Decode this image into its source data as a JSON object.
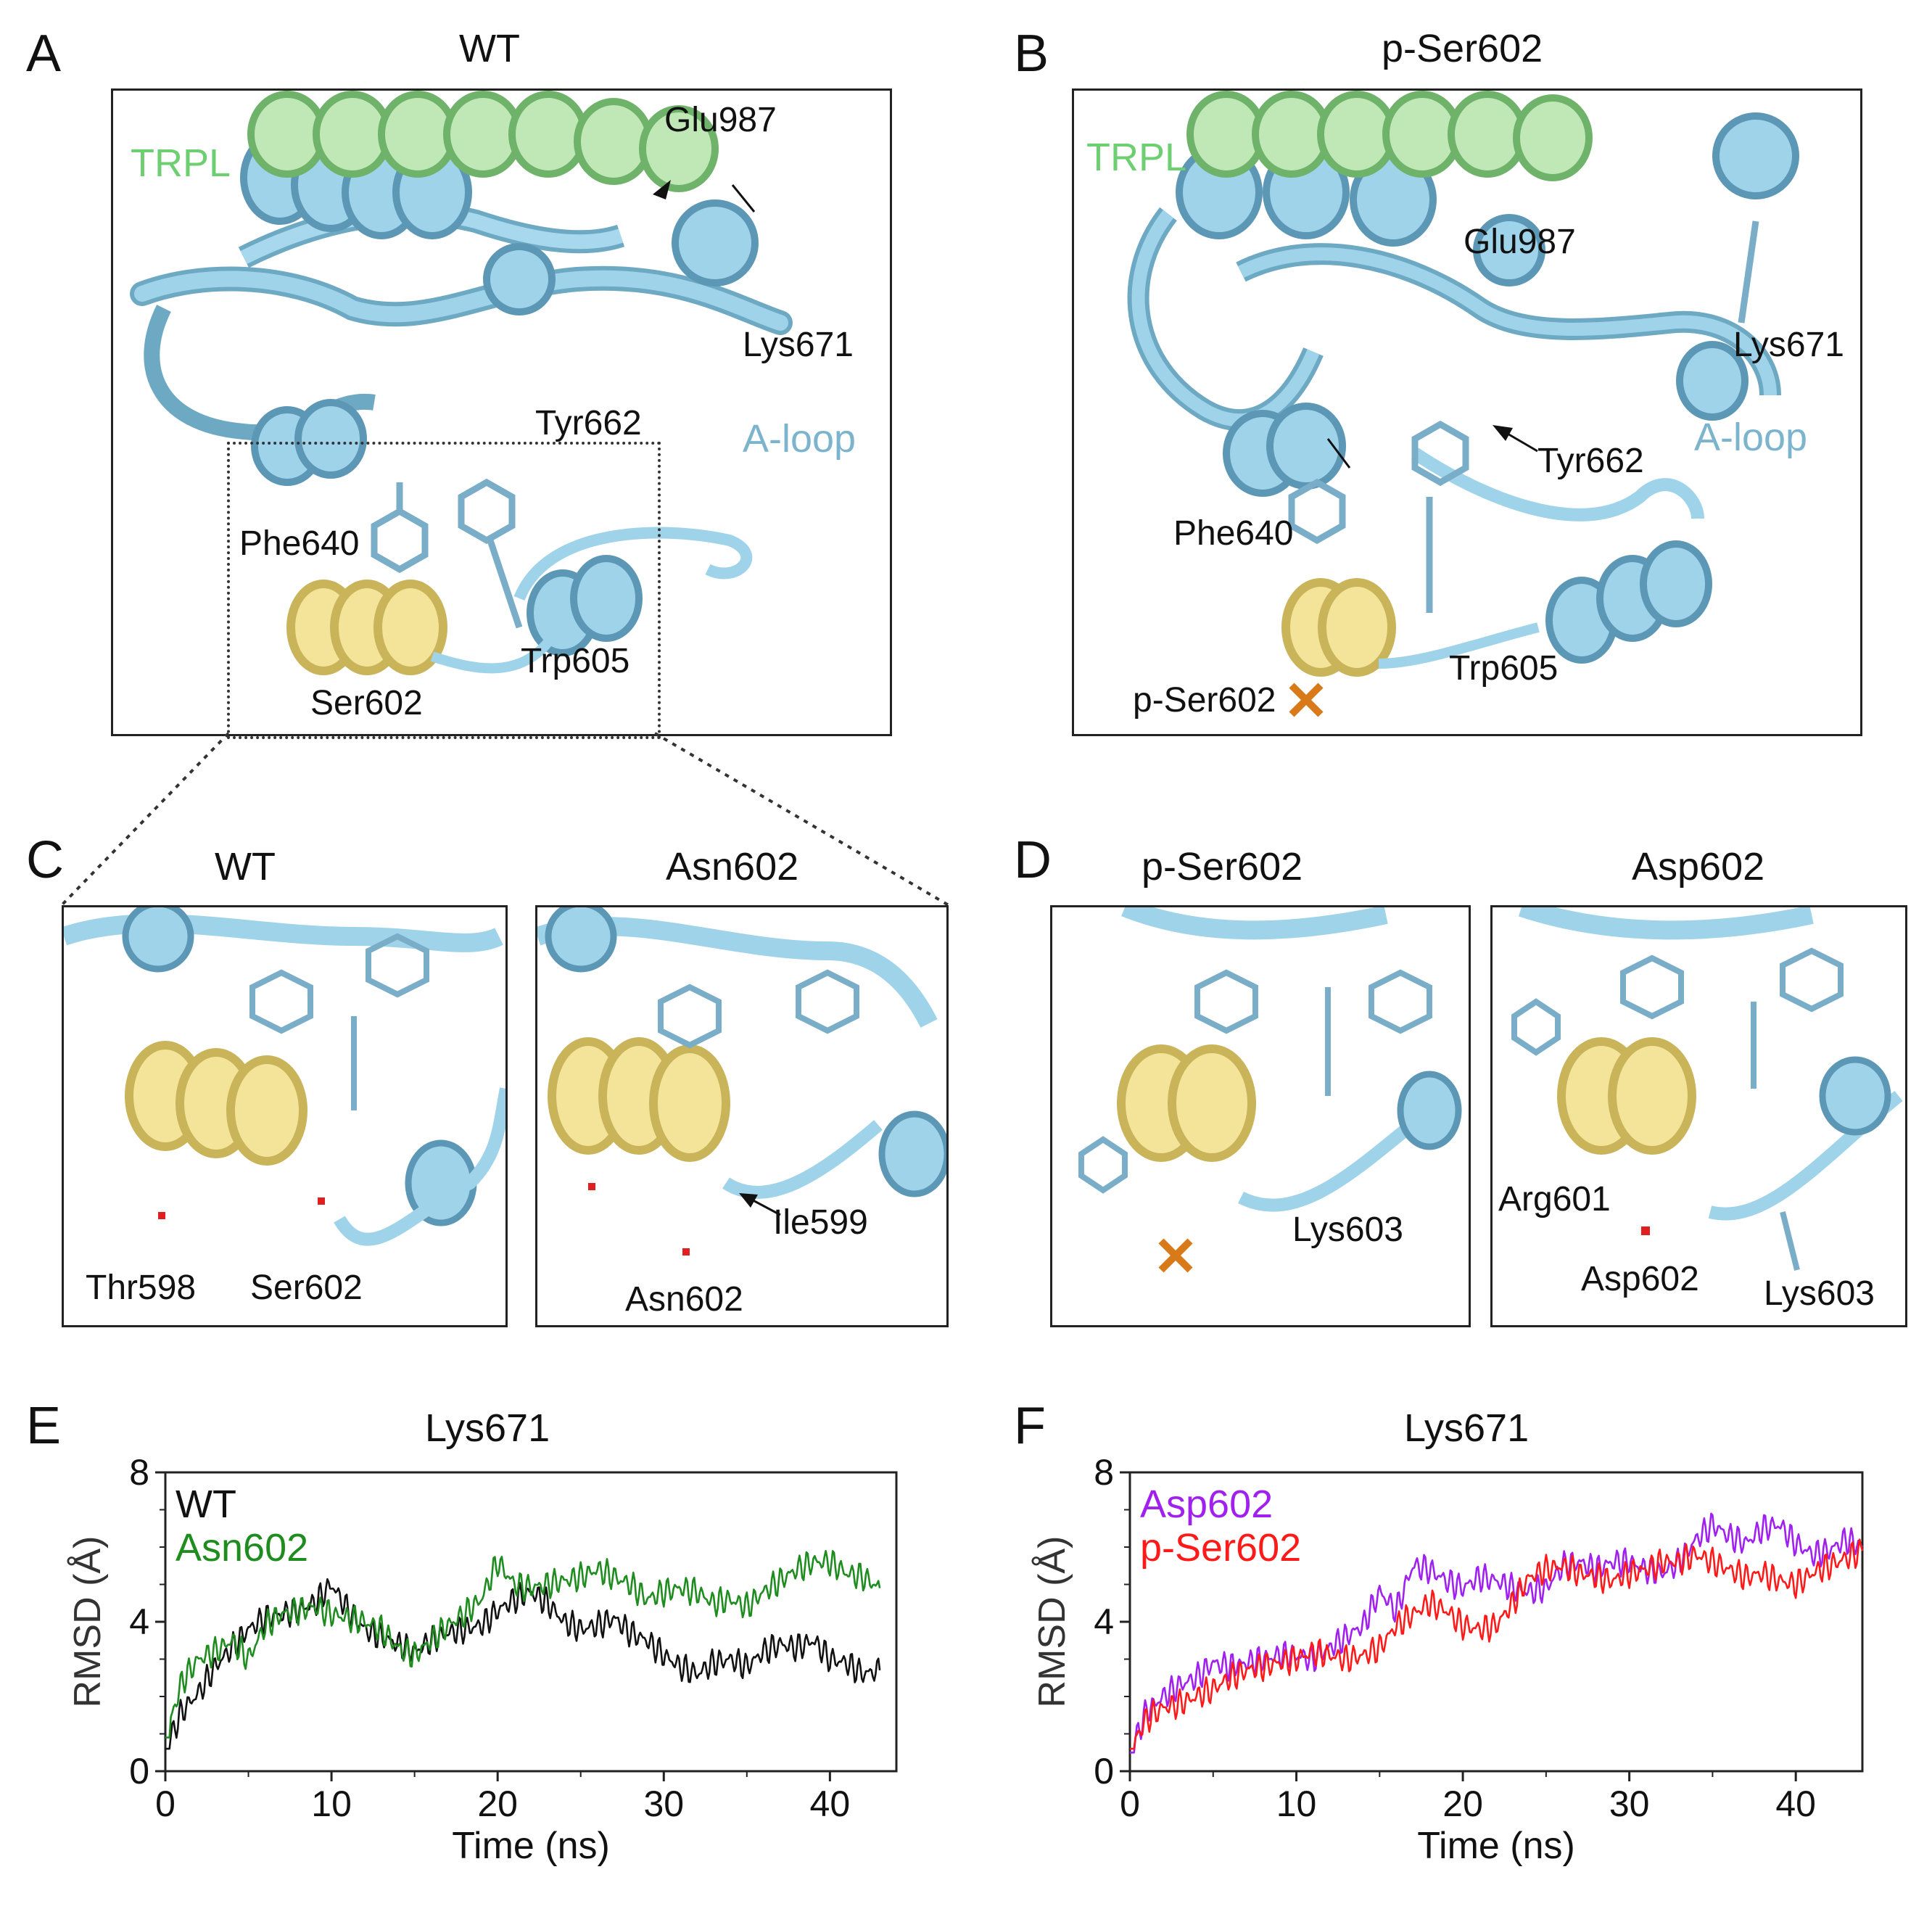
{
  "panels": {
    "A": {
      "letter": "A",
      "title": "WT",
      "labels": {
        "trpl": "TRPL",
        "glu987": "Glu987",
        "lys671": "Lys671",
        "tyr662": "Tyr662",
        "aloop": "A-loop",
        "phe640": "Phe640",
        "trp605": "Trp605",
        "ser602": "Ser602"
      }
    },
    "B": {
      "letter": "B",
      "title": "p-Ser602",
      "labels": {
        "trpl": "TRPL",
        "glu987": "Glu987",
        "lys671": "Lys671",
        "tyr662": "Tyr662",
        "aloop": "A-loop",
        "phe640": "Phe640",
        "trp605": "Trp605",
        "pser602": "p-Ser602"
      }
    },
    "C": {
      "letter": "C",
      "left": {
        "title": "WT",
        "labels": {
          "thr598": "Thr598",
          "ser602": "Ser602"
        }
      },
      "right": {
        "title": "Asn602",
        "labels": {
          "ile599": "Ile599",
          "asn602": "Asn602"
        }
      }
    },
    "D": {
      "letter": "D",
      "left": {
        "title": "p-Ser602",
        "labels": {
          "lys603": "Lys603"
        }
      },
      "right": {
        "title": "Asp602",
        "labels": {
          "arg601": "Arg601",
          "asp602": "Asp602",
          "lys603": "Lys603"
        }
      }
    },
    "E": {
      "letter": "E",
      "title": "Lys671"
    },
    "F": {
      "letter": "F",
      "title": "Lys671"
    }
  },
  "colors": {
    "kinase": "#87c4df",
    "trpl": "#9fd89a",
    "helix": "#f0e08e",
    "trpl_text": "#6ecf72",
    "aloop_text": "#7bb4cc",
    "wt": "#111111",
    "asn602": "#1f8c1f",
    "asp602": "#a020f0",
    "pser602": "#ff1a1a"
  },
  "chart_data": [
    {
      "panel": "E",
      "type": "line",
      "title": "Lys671",
      "xlabel": "Time (ns)",
      "ylabel": "RMSD (Å)",
      "xlim": [
        0,
        44
      ],
      "ylim": [
        0,
        8
      ],
      "xticks": [
        0,
        10,
        20,
        30,
        40
      ],
      "yticks": [
        0,
        4,
        8
      ],
      "legend": "top-left",
      "series": [
        {
          "name": "WT",
          "color": "#111111",
          "x": [
            0,
            1,
            2,
            3,
            4,
            5,
            6,
            7,
            8,
            9,
            10,
            11,
            12,
            13,
            14,
            15,
            16,
            17,
            18,
            19,
            20,
            21,
            22,
            23,
            24,
            25,
            26,
            27,
            28,
            29,
            30,
            31,
            32,
            33,
            34,
            35,
            36,
            37,
            38,
            39,
            40,
            41,
            42,
            43
          ],
          "y": [
            0.6,
            1.6,
            2.1,
            2.8,
            3.3,
            3.8,
            4.1,
            4.2,
            4.3,
            4.5,
            5.0,
            4.3,
            3.8,
            3.6,
            3.4,
            3.2,
            3.5,
            3.7,
            3.8,
            3.9,
            4.3,
            4.6,
            4.8,
            4.5,
            4.0,
            3.8,
            3.9,
            4.1,
            3.7,
            3.5,
            3.1,
            2.8,
            2.6,
            2.9,
            3.0,
            2.8,
            3.2,
            3.4,
            3.3,
            3.5,
            3.0,
            2.9,
            2.6,
            2.7
          ]
        },
        {
          "name": "Asn602",
          "color": "#1f8c1f",
          "x": [
            0,
            1,
            2,
            3,
            4,
            5,
            6,
            7,
            8,
            9,
            10,
            11,
            12,
            13,
            14,
            15,
            16,
            17,
            18,
            19,
            20,
            21,
            22,
            23,
            24,
            25,
            26,
            27,
            28,
            29,
            30,
            31,
            32,
            33,
            34,
            35,
            36,
            37,
            38,
            39,
            40,
            41,
            42,
            43
          ],
          "y": [
            0.9,
            2.4,
            3.0,
            3.2,
            3.5,
            3.0,
            3.9,
            4.2,
            4.3,
            4.4,
            4.2,
            4.1,
            4.0,
            3.8,
            3.3,
            3.1,
            3.5,
            3.9,
            4.2,
            4.6,
            5.6,
            5.0,
            4.9,
            5.0,
            5.1,
            5.2,
            5.4,
            5.2,
            5.0,
            4.6,
            4.8,
            4.9,
            4.8,
            4.5,
            4.6,
            4.4,
            4.8,
            5.1,
            5.4,
            5.6,
            5.6,
            5.3,
            5.2,
            4.9
          ]
        }
      ]
    },
    {
      "panel": "F",
      "type": "line",
      "title": "Lys671",
      "xlabel": "Time (ns)",
      "ylabel": "RMSD (Å)",
      "xlim": [
        0,
        44
      ],
      "ylim": [
        0,
        8
      ],
      "xticks": [
        0,
        10,
        20,
        30,
        40
      ],
      "yticks": [
        0,
        4,
        8
      ],
      "legend": "top-left",
      "series": [
        {
          "name": "Asp602",
          "color": "#a020f0",
          "x": [
            0,
            1,
            2,
            3,
            4,
            5,
            6,
            7,
            8,
            9,
            10,
            11,
            12,
            13,
            14,
            15,
            16,
            17,
            18,
            19,
            20,
            21,
            22,
            23,
            24,
            25,
            26,
            27,
            28,
            29,
            30,
            31,
            32,
            33,
            34,
            35,
            36,
            37,
            38,
            39,
            40,
            41,
            42,
            43,
            44
          ],
          "y": [
            0.5,
            1.6,
            2.0,
            2.3,
            2.5,
            2.9,
            2.8,
            2.9,
            3.0,
            3.1,
            3.1,
            3.0,
            3.3,
            3.6,
            3.9,
            4.8,
            4.3,
            5.5,
            5.4,
            5.1,
            4.9,
            5.2,
            5.1,
            4.9,
            4.8,
            4.9,
            5.5,
            5.6,
            5.4,
            5.6,
            5.6,
            5.4,
            5.3,
            5.6,
            6.2,
            6.6,
            6.3,
            6.1,
            6.5,
            6.6,
            6.1,
            5.8,
            5.9,
            6.2,
            6.0
          ]
        },
        {
          "name": "p-Ser602",
          "color": "#ff1a1a",
          "x": [
            0,
            1,
            2,
            3,
            4,
            5,
            6,
            7,
            8,
            9,
            10,
            11,
            12,
            13,
            14,
            15,
            16,
            17,
            18,
            19,
            20,
            21,
            22,
            23,
            24,
            25,
            26,
            27,
            28,
            29,
            30,
            31,
            32,
            33,
            34,
            35,
            36,
            37,
            38,
            39,
            40,
            41,
            42,
            43,
            44
          ],
          "y": [
            0.6,
            1.4,
            1.7,
            1.8,
            2.0,
            2.2,
            2.5,
            2.7,
            2.8,
            2.9,
            3.0,
            3.2,
            3.1,
            3.0,
            3.1,
            3.3,
            3.9,
            4.2,
            4.5,
            4.3,
            3.9,
            3.8,
            3.9,
            4.5,
            5.2,
            5.4,
            5.5,
            5.3,
            5.2,
            5.1,
            5.3,
            5.4,
            5.6,
            5.6,
            5.8,
            5.6,
            5.4,
            5.2,
            5.3,
            5.1,
            5.0,
            5.3,
            5.5,
            5.7,
            5.9
          ]
        }
      ]
    }
  ]
}
